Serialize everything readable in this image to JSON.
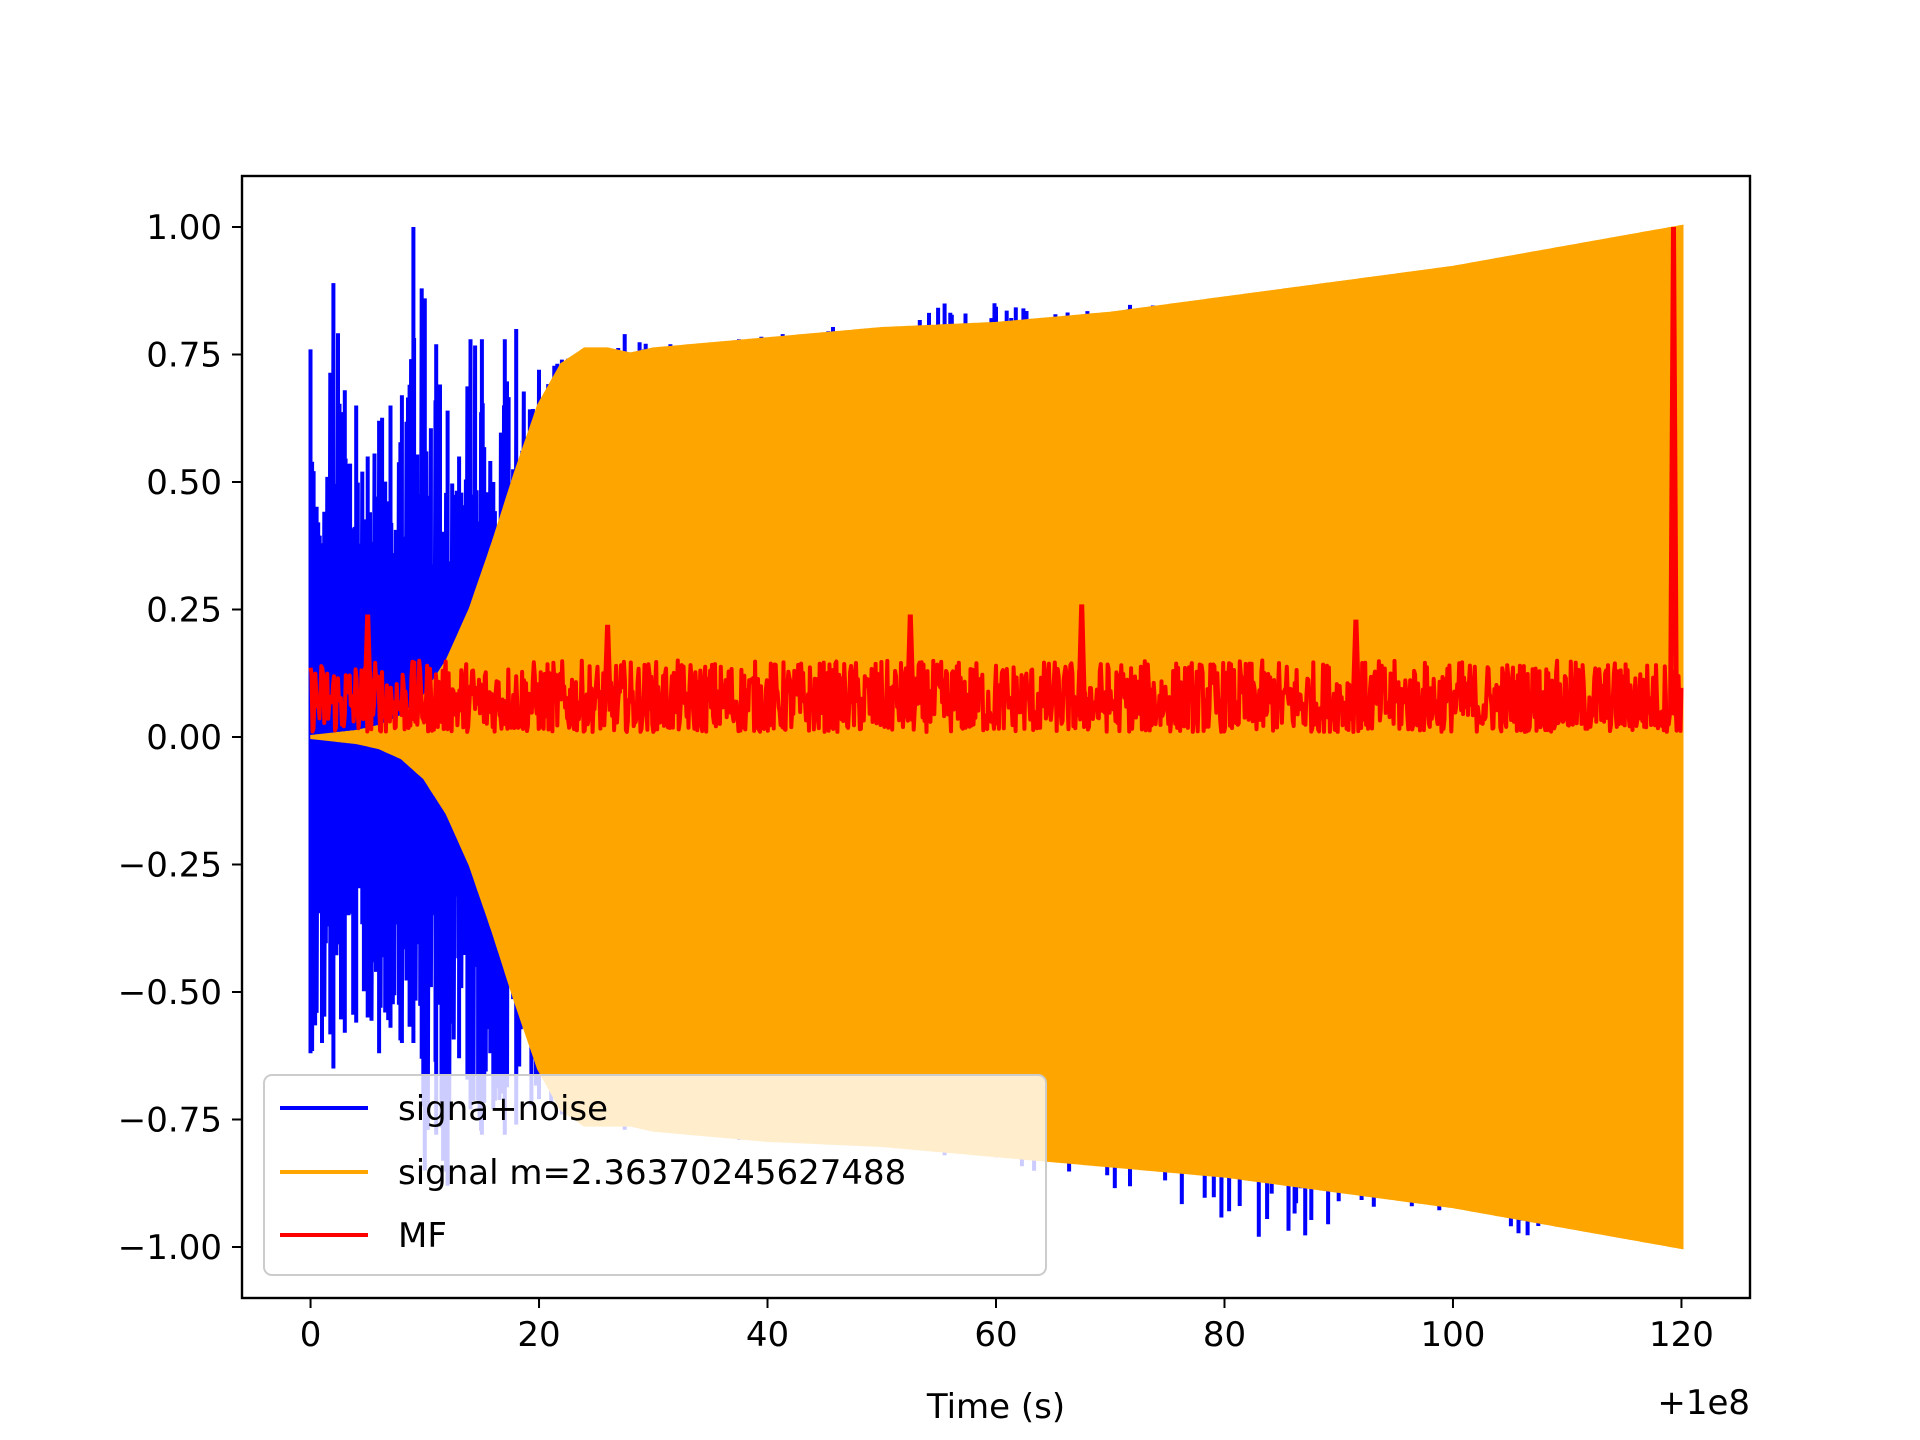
{
  "chart_data": {
    "type": "line",
    "title": "",
    "xlabel": "Time (s)",
    "ylabel": "",
    "x_offset_label": "+1e8",
    "xlim": [
      -6,
      126
    ],
    "ylim": [
      -1.1,
      1.1
    ],
    "x_ticks": [
      0,
      20,
      40,
      60,
      80,
      100,
      120
    ],
    "x_tick_labels": [
      "0",
      "20",
      "40",
      "60",
      "80",
      "100",
      "120"
    ],
    "y_ticks": [
      1.0,
      0.75,
      0.5,
      0.25,
      0.0,
      -0.25,
      -0.5,
      -0.75,
      -1.0
    ],
    "y_tick_labels": [
      "1.00",
      "0.75",
      "0.50",
      "0.25",
      "0.00",
      "−0.25",
      "−0.50",
      "−0.75",
      "−1.00"
    ],
    "grid": false,
    "legend_position": "lower-left",
    "series": [
      {
        "name": "signa+noise",
        "color": "#0000ff",
        "x": [
          0,
          1,
          2,
          3,
          4,
          5,
          6,
          7,
          8,
          9,
          10,
          11,
          12,
          13,
          14,
          15,
          16,
          17,
          18,
          20,
          22,
          25,
          27.5,
          31.5,
          37.5,
          55.5,
          83
        ],
        "y_max": [
          0.76,
          0.38,
          0.89,
          0.68,
          0.65,
          0.55,
          0.62,
          0.65,
          0.67,
          1.0,
          0.86,
          0.77,
          0.64,
          0.55,
          0.78,
          0.78,
          0.5,
          0.78,
          0.8,
          0.72,
          0.74,
          0.76,
          0.79,
          0.77,
          0.78,
          0.85,
          0.86
        ],
        "y_min": [
          -0.62,
          -0.6,
          -0.65,
          -0.58,
          -0.56,
          -0.55,
          -0.62,
          -0.57,
          -0.6,
          -0.6,
          -0.85,
          -0.78,
          -0.88,
          -0.63,
          -0.73,
          -0.78,
          -0.73,
          -0.78,
          -0.76,
          -0.71,
          -0.74,
          -0.75,
          -0.77,
          -0.77,
          -0.79,
          -0.82,
          -0.98
        ]
      },
      {
        "name": "signal m=2.36370245627488",
        "color": "#ffa500",
        "x": [
          0,
          2,
          4,
          6,
          8,
          10,
          12,
          14,
          16,
          18,
          20,
          22,
          24,
          26,
          28,
          30,
          35,
          40,
          50,
          60,
          70,
          80,
          90,
          100,
          110,
          120
        ],
        "y_max": [
          0.0,
          0.005,
          0.01,
          0.02,
          0.04,
          0.08,
          0.15,
          0.25,
          0.38,
          0.52,
          0.65,
          0.73,
          0.76,
          0.76,
          0.75,
          0.76,
          0.77,
          0.78,
          0.8,
          0.81,
          0.83,
          0.86,
          0.89,
          0.92,
          0.96,
          1.0
        ],
        "y_min": [
          0.0,
          -0.005,
          -0.01,
          -0.02,
          -0.04,
          -0.08,
          -0.15,
          -0.25,
          -0.38,
          -0.52,
          -0.65,
          -0.73,
          -0.76,
          -0.76,
          -0.76,
          -0.77,
          -0.78,
          -0.79,
          -0.8,
          -0.82,
          -0.84,
          -0.86,
          -0.89,
          -0.92,
          -0.96,
          -1.0
        ]
      },
      {
        "name": "MF",
        "color": "#ff0000",
        "baseline_range": [
          0.0,
          0.15
        ],
        "peaks": [
          {
            "x": 5.0,
            "y": 0.24
          },
          {
            "x": 26.0,
            "y": 0.22
          },
          {
            "x": 52.5,
            "y": 0.24
          },
          {
            "x": 67.5,
            "y": 0.26
          },
          {
            "x": 91.5,
            "y": 0.23
          },
          {
            "x": 119.3,
            "y": 1.0
          }
        ]
      }
    ]
  }
}
